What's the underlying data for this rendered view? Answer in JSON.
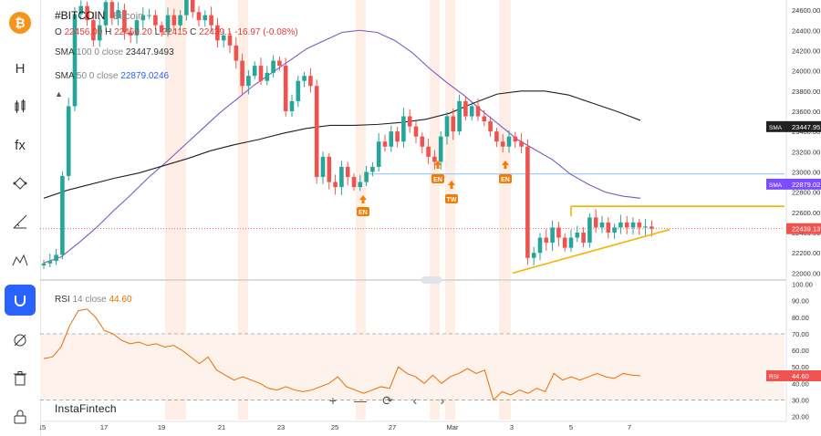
{
  "toolbar": {
    "items": [
      {
        "name": "bitcoin-logo-icon",
        "glyph": "₿"
      },
      {
        "name": "heikin-ashi-icon",
        "glyph": "H"
      },
      {
        "name": "candles-icon",
        "glyph": ""
      },
      {
        "name": "function-icon",
        "glyph": "fx"
      },
      {
        "name": "draw-tool-icon",
        "glyph": ""
      },
      {
        "name": "measure-icon",
        "glyph": ""
      },
      {
        "name": "pattern-icon",
        "glyph": ""
      },
      {
        "name": "magnet-icon",
        "glyph": ""
      },
      {
        "name": "hide-drawings-icon",
        "glyph": ""
      },
      {
        "name": "trash-icon",
        "glyph": ""
      },
      {
        "name": "lock-icon",
        "glyph": ""
      }
    ]
  },
  "legend": {
    "symbol": "#BITCOIN",
    "symbol_desc": "Bitcoin",
    "o_label": "O",
    "o_value": "22456.00",
    "h_label": "H",
    "h_value": "22460.20",
    "l_label": "L",
    "l_value": "22415",
    "c_label": "C",
    "c_value": "22439.1",
    "change": "-16.97 (-0.08%)",
    "sma100_label": "SMA",
    "sma100_params": "100 0 close",
    "sma100_value": "23447.9493",
    "sma50_label": "SMA",
    "sma50_params": "50 0 close",
    "sma50_value": "22879.0246",
    "rsi_label": "RSI",
    "rsi_params": "14 close",
    "rsi_value": "44.60"
  },
  "brand": "InstaFintech",
  "nav": [
    "+",
    "—",
    "⟳",
    "‹",
    "›"
  ],
  "colors": {
    "up": "#26a69a",
    "down": "#ef5350",
    "sma50": "#7e57c2",
    "sma100": "#212121",
    "rsi": "#ef6c00",
    "accent": "#2962ff",
    "triangle": "#f5b400"
  },
  "chart_data": [
    {
      "type": "candlestick",
      "title": "#BITCOIN",
      "x_ticks": [
        "15",
        "17",
        "19",
        "21",
        "23",
        "25",
        "27",
        "Mar",
        "3",
        "5",
        "7"
      ],
      "y_ticks": [
        "22000.00",
        "22200.00",
        "22400.00",
        "22600.00",
        "22800.00",
        "23000.00",
        "23200.00",
        "23400.00",
        "23600.00",
        "23800.00",
        "24000.00",
        "24200.00",
        "24400.00",
        "24600.00"
      ],
      "ylim": [
        21940,
        24700
      ],
      "current_price": "22439.13",
      "sma100_tag": "23447.95",
      "sma100_tag_label": "SMA",
      "sma50_tag": "22879.02",
      "sma50_tag_label": "SMA",
      "horizontal_level": 22980,
      "close": [
        22095,
        22120,
        22180,
        22960,
        23650,
        24560,
        24640,
        24500,
        24300,
        24450,
        24680,
        24520,
        24600,
        24380,
        24350,
        24500,
        24550,
        24550,
        24450,
        24380,
        24550,
        24450,
        24550,
        24700,
        24580,
        24500,
        24550,
        24450,
        24300,
        24350,
        24250,
        24100,
        23850,
        23950,
        24050,
        23900,
        23980,
        24100,
        24050,
        23600,
        23700,
        23900,
        23950,
        23850,
        22950,
        23150,
        22900,
        22850,
        23050,
        22950,
        22850,
        22900,
        23000,
        23050,
        23300,
        23250,
        23400,
        23300,
        23550,
        23450,
        23350,
        23250,
        23150,
        23100,
        23350,
        23550,
        23400,
        23700,
        23550,
        23650,
        23550,
        23500,
        23400,
        23300,
        23250,
        23350,
        23300,
        23250,
        22150,
        22200,
        22350,
        22300,
        22450,
        22350,
        22250,
        22350,
        22400,
        22300,
        22550,
        22450,
        22500,
        22400,
        22450,
        22500,
        22450,
        22500,
        22450,
        22460,
        22439
      ],
      "sma50": [
        22100,
        22160,
        22300,
        22450,
        22620,
        22780,
        22950,
        23100,
        23260,
        23420,
        23580,
        23720,
        23860,
        23980,
        24100,
        24220,
        24300,
        24380,
        24400,
        24380,
        24300,
        24180,
        24020,
        23880,
        23750,
        23600,
        23460,
        23320,
        23220,
        23120,
        22980,
        22880,
        22800,
        22760,
        22740
      ],
      "sma100": [
        22740,
        22820,
        22880,
        22940,
        22990,
        23060,
        23130,
        23210,
        23270,
        23320,
        23380,
        23430,
        23460,
        23460,
        23470,
        23490,
        23520,
        23580,
        23680,
        23770,
        23800,
        23800,
        23760,
        23680,
        23600,
        23510
      ],
      "annotations": [
        "EN",
        "EN",
        "TW",
        "EN"
      ]
    },
    {
      "type": "line",
      "title": "RSI",
      "y_ticks": [
        "20.00",
        "30.00",
        "40.00",
        "50.00",
        "60.00",
        "70.00",
        "80.00",
        "90.00",
        "100.00"
      ],
      "ylim": [
        17,
        102
      ],
      "levels": [
        70,
        30
      ],
      "rsi": [
        55,
        56,
        62,
        75,
        84,
        85,
        80,
        72,
        70,
        66,
        64,
        65,
        63,
        64,
        62,
        63,
        60,
        56,
        52,
        56,
        48,
        45,
        42,
        44,
        42,
        40,
        37,
        36,
        38,
        36,
        35,
        36,
        38,
        40,
        44,
        38,
        36,
        34,
        36,
        38,
        37,
        50,
        46,
        44,
        40,
        45,
        40,
        44,
        46,
        49,
        46,
        48,
        30,
        35,
        33,
        36,
        34,
        37,
        35,
        46,
        42,
        44,
        42,
        44,
        46,
        44,
        43,
        46,
        45,
        44.6
      ],
      "current_value": "44.60",
      "current_label": "RSI"
    }
  ]
}
